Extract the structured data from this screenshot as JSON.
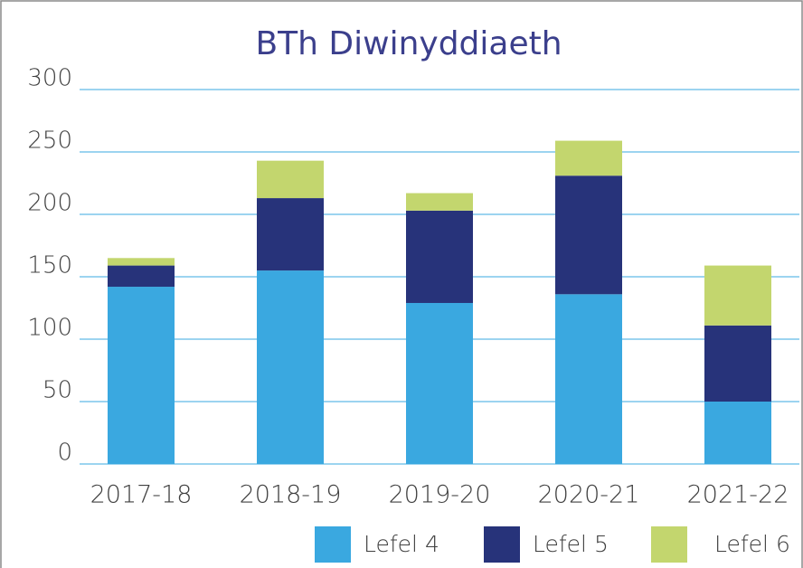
{
  "chart_data": {
    "type": "stacked_bar",
    "title": "BTh Diwinyddiaeth",
    "categories": [
      "2017-18",
      "2018-19",
      "2019-20",
      "2020-21",
      "2021-22"
    ],
    "series": [
      {
        "name": "Lefel 4",
        "color": "#3aa8e0",
        "values": [
          142,
          155,
          129,
          136,
          50
        ]
      },
      {
        "name": "Lefel 5",
        "color": "#27337a",
        "values": [
          17,
          58,
          74,
          95,
          61
        ]
      },
      {
        "name": "Lefel 6",
        "color": "#c3d66e",
        "values": [
          6,
          30,
          14,
          28,
          48
        ]
      }
    ],
    "ylim": [
      0,
      300
    ],
    "yticks": [
      0,
      50,
      100,
      150,
      200,
      250,
      300
    ],
    "grid": true
  }
}
